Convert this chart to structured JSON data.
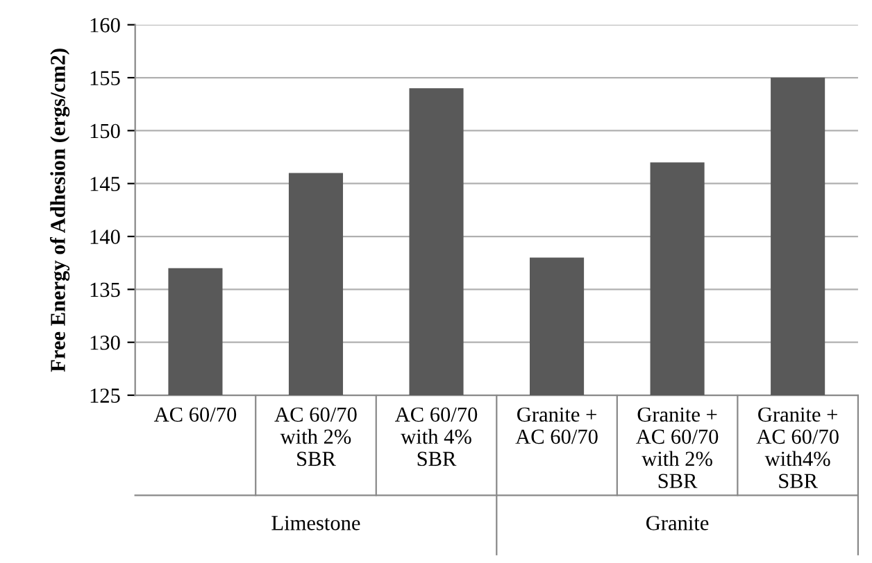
{
  "chart_data": {
    "type": "bar",
    "ylabel": "Free Energy of Adhesion (ergs/cm2)",
    "categories": [
      "AC 60/70",
      "AC 60/70\nwith 2%\nSBR",
      "AC 60/70\nwith 4%\nSBR",
      "Granite +\nAC 60/70",
      "Granite +\nAC 60/70\nwith 2%\nSBR",
      "Granite +\nAC 60/70\nwith4%\nSBR"
    ],
    "values": [
      137,
      146,
      154,
      138,
      147,
      155
    ],
    "color": "#595959",
    "ylim": [
      125,
      160
    ],
    "yticks": [
      125,
      130,
      135,
      140,
      145,
      150,
      155,
      160
    ],
    "grid": "y",
    "annotations": [
      "Limestone",
      "Granite"
    ]
  }
}
